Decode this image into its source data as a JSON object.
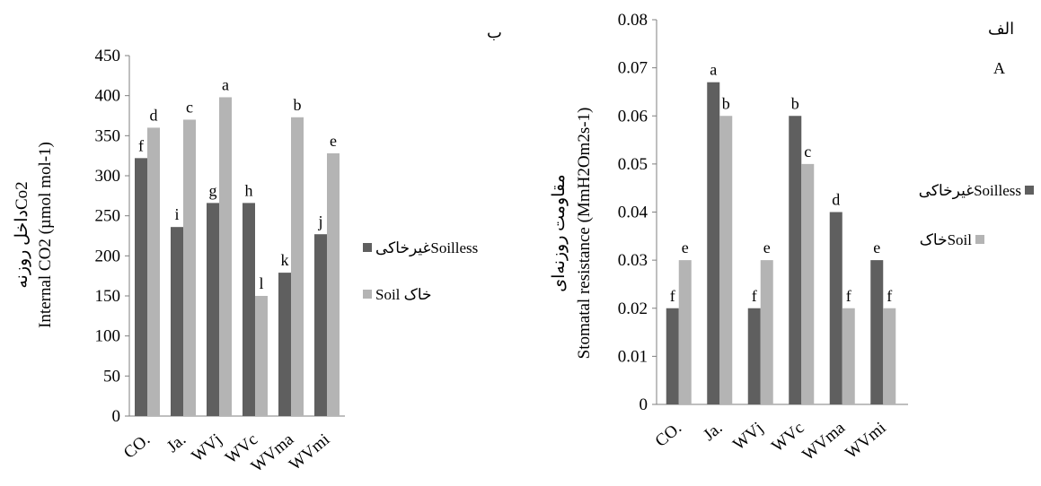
{
  "colors": {
    "soilless": "#5f5f5f",
    "soil": "#b4b4b4",
    "axis": "#7f7f7f"
  },
  "chart_data": [
    {
      "type": "bar",
      "corner_label": "ب",
      "ylabel_line1": "داخل روزنهCo2",
      "ylabel_line2": "Internal CO2 (µmol mol-1)",
      "categories": [
        "CO.",
        "Ja.",
        "WVj",
        "WVc",
        "WVma",
        "WVmi"
      ],
      "ylim": [
        0,
        450
      ],
      "yticks": [
        0,
        50,
        100,
        150,
        200,
        250,
        300,
        350,
        400,
        450
      ],
      "ytick_labels": [
        "0",
        "50",
        "100",
        "150",
        "200",
        "250",
        "300",
        "350",
        "400",
        "450"
      ],
      "series": [
        {
          "name": "غیرخاکیSoilless",
          "values": [
            322,
            236,
            266,
            266,
            179,
            227
          ],
          "labels": [
            "f",
            "i",
            "g",
            "h",
            "k",
            "j"
          ]
        },
        {
          "name": "Soil خاک",
          "values": [
            360,
            370,
            398,
            150,
            373,
            328
          ],
          "labels": [
            "d",
            "c",
            "a",
            "l",
            "b",
            "e"
          ]
        }
      ],
      "legend": "right"
    },
    {
      "type": "bar",
      "corner_label": "الف",
      "corner_label_2": "A",
      "ylabel_line1": "مقاومت روزنه‌ای",
      "ylabel_line2": "Stomatal resistance (MmH2Om2s-1)",
      "categories": [
        "CO.",
        "Ja.",
        "WVj",
        "WVc",
        "WVma",
        "WVmi"
      ],
      "ylim": [
        0,
        0.08
      ],
      "yticks": [
        0,
        0.01,
        0.02,
        0.03,
        0.04,
        0.05,
        0.06,
        0.07,
        0.08
      ],
      "ytick_labels": [
        "0",
        "0.01",
        "0.02",
        "0.03",
        "0.04",
        "0.05",
        "0.06",
        "0.07",
        "0.08"
      ],
      "series": [
        {
          "name": "غیرخاکیSoilless",
          "values": [
            0.02,
            0.067,
            0.02,
            0.06,
            0.04,
            0.03
          ],
          "labels": [
            "f",
            "a",
            "f",
            "b",
            "d",
            "e"
          ]
        },
        {
          "name": "خاکSoil",
          "values": [
            0.03,
            0.06,
            0.03,
            0.05,
            0.02,
            0.02
          ],
          "labels": [
            "e",
            "b",
            "e",
            "c",
            "f",
            "f"
          ]
        }
      ],
      "legend": "right"
    }
  ]
}
